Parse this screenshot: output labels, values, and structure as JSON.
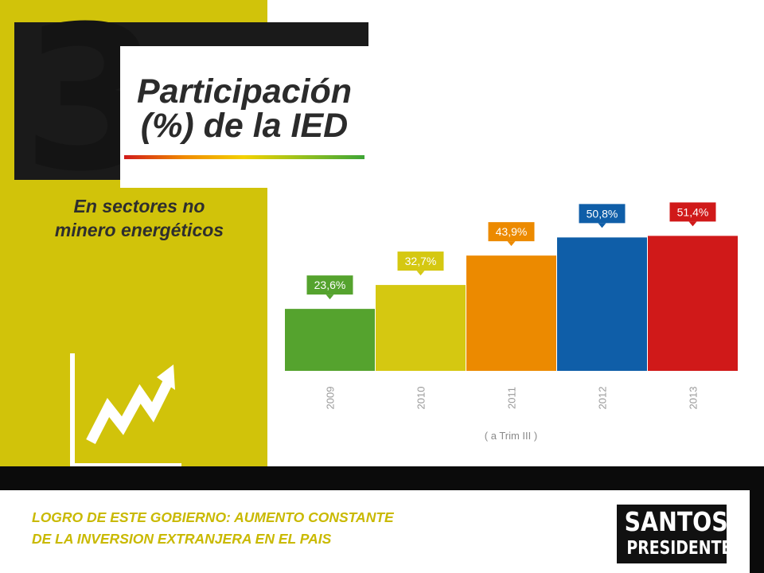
{
  "slide": {
    "number": "3",
    "title_line1": "Participación",
    "title_line2": "(%) de la IED",
    "subtitle_line1": "En sectores no",
    "subtitle_line2": "minero energéticos"
  },
  "footer": {
    "line1": "LOGRO DE ESTE GOBIERNO: AUMENTO CONSTANTE",
    "line2": "DE LA INVERSION EXTRANJERA EN EL PAIS"
  },
  "logo": {
    "line1": "SANTOS",
    "line2": "PRESIDENTE"
  },
  "colors": {
    "panel": "#d1c30a",
    "footer_text": "#c9b900"
  },
  "icons": {
    "growth": "rising-arrow-chart-icon"
  },
  "chart_data": {
    "type": "bar",
    "title": "Participación (%) de la IED",
    "categories": [
      "2009",
      "2010",
      "2011",
      "2012",
      "2013"
    ],
    "values": [
      23.6,
      32.7,
      43.9,
      50.8,
      51.4
    ],
    "value_labels": [
      "23,6%",
      "32,7%",
      "43,9%",
      "50,8%",
      "51,4%"
    ],
    "colors": [
      "#55a32e",
      "#d5c811",
      "#ec8a00",
      "#0f5ea8",
      "#d01919"
    ],
    "xnote": "( a Trim III )",
    "ylim": [
      0,
      60
    ],
    "grid": false
  }
}
